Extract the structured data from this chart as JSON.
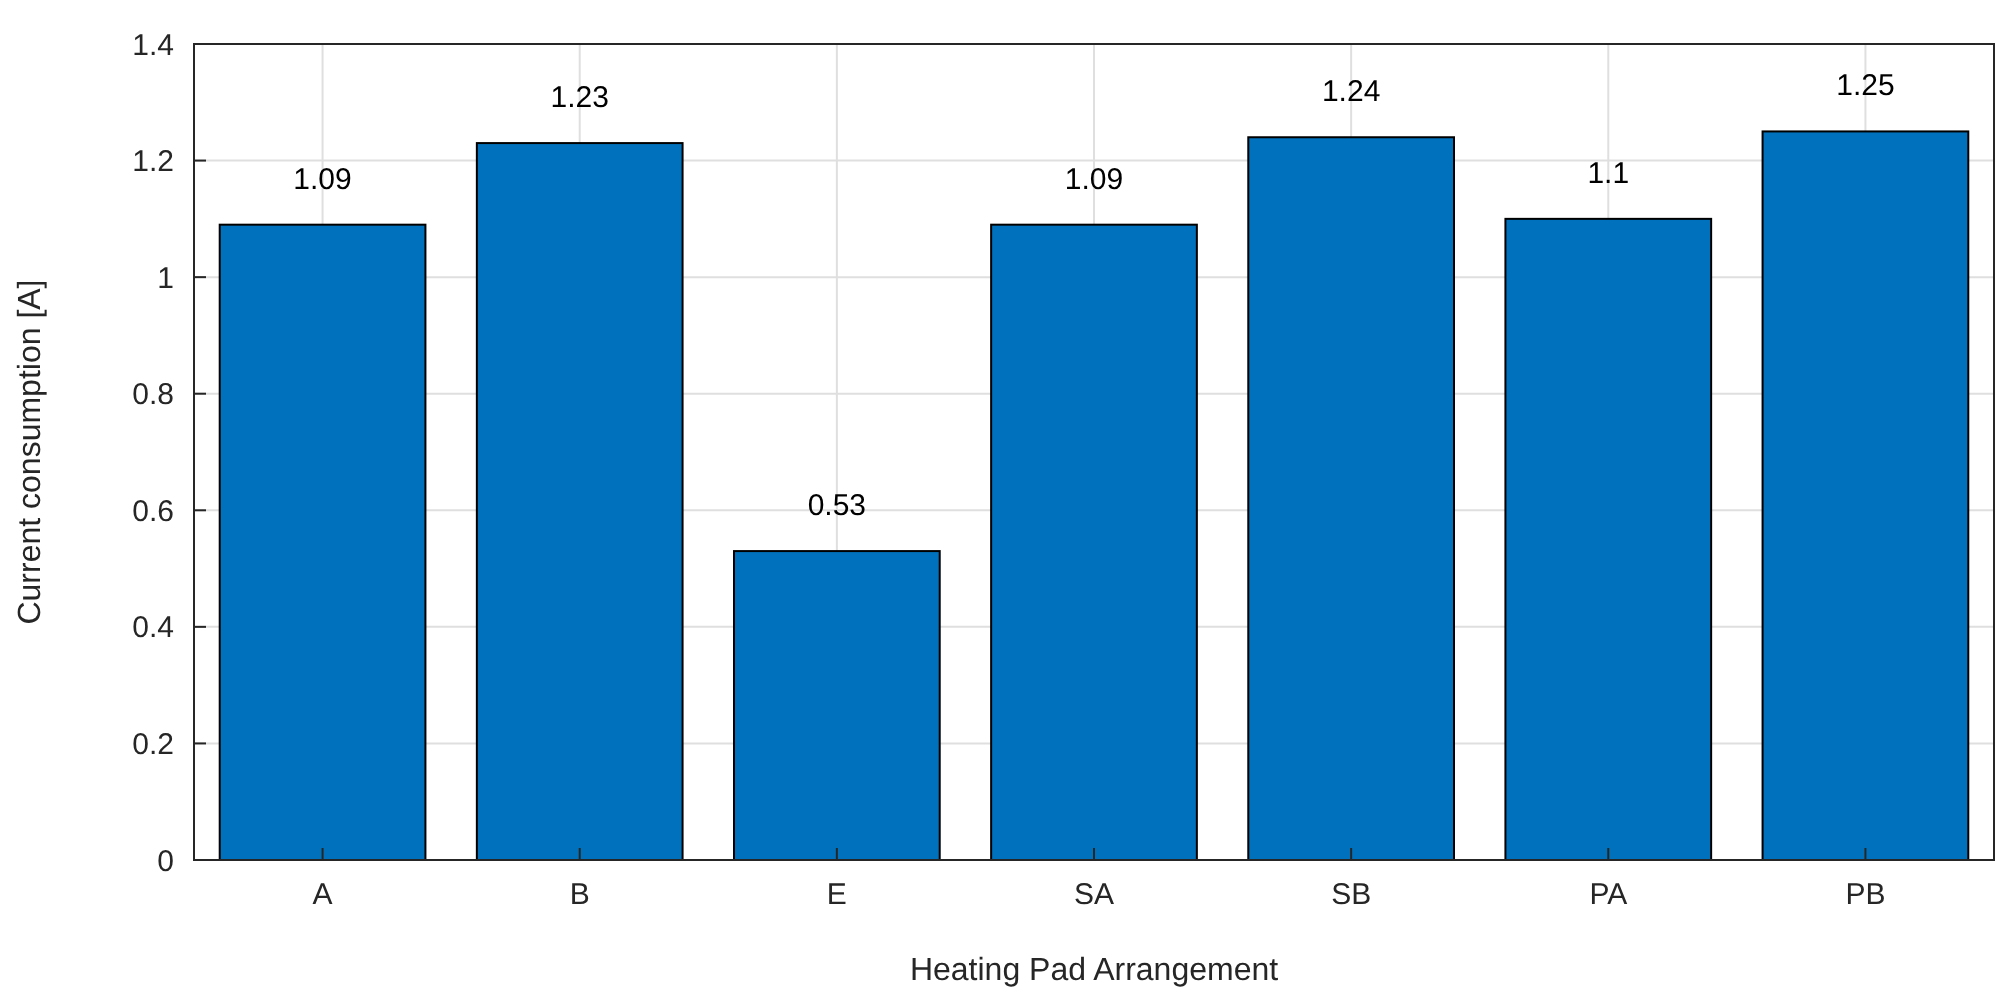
{
  "chart_data": {
    "type": "bar",
    "xlabel": "Heating Pad Arrangement",
    "ylabel": "Current consumption [A]",
    "categories": [
      "A",
      "B",
      "E",
      "SA",
      "SB",
      "PA",
      "PB"
    ],
    "values": [
      1.09,
      1.23,
      0.53,
      1.09,
      1.24,
      1.1,
      1.25
    ],
    "color": "#0072bd",
    "ylim": [
      0,
      1.4
    ],
    "yticks": [
      0,
      0.2,
      0.4,
      0.6,
      0.8,
      1,
      1.2,
      1.4
    ],
    "grid": true,
    "data_labels": true
  }
}
